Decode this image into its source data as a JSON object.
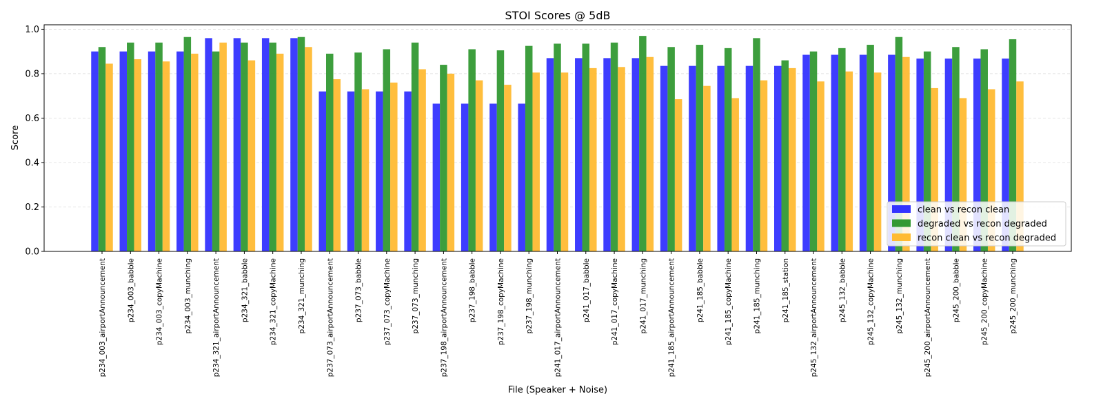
{
  "chart_data": {
    "type": "bar",
    "title": "STOI Scores @ 5dB",
    "xlabel": "File (Speaker + Noise)",
    "ylabel": "Score",
    "ylim": [
      0,
      1.02
    ],
    "yticks": [
      "0.0",
      "0.2",
      "0.4",
      "0.6",
      "0.8",
      "1.0"
    ],
    "grid": "y-dashed",
    "legend_position": "lower-right",
    "categories": [
      "p234_003_airportAnnouncement",
      "p234_003_babble",
      "p234_003_copyMachine",
      "p234_003_munching",
      "p234_321_airportAnnouncement",
      "p234_321_babble",
      "p234_321_copyMachine",
      "p234_321_munching",
      "p237_073_airportAnnouncement",
      "p237_073_babble",
      "p237_073_copyMachine",
      "p237_073_munching",
      "p237_198_airportAnnouncement",
      "p237_198_babble",
      "p237_198_copyMachine",
      "p237_198_munching",
      "p241_017_airportAnnouncement",
      "p241_017_babble",
      "p241_017_copyMachine",
      "p241_017_munching",
      "p241_185_airportAnnouncement",
      "p241_185_babble",
      "p241_185_copyMachine",
      "p241_185_munching",
      "p241_185_station",
      "p245_132_airportAnnouncement",
      "p245_132_babble",
      "p245_132_copyMachine",
      "p245_132_munching",
      "p245_200_airportAnnouncement",
      "p245_200_babble",
      "p245_200_copyMachine",
      "p245_200_munching"
    ],
    "series": [
      {
        "name": "clean vs recon clean",
        "color": "#3333ff",
        "values": [
          0.9,
          0.9,
          0.9,
          0.9,
          0.96,
          0.96,
          0.96,
          0.96,
          0.72,
          0.72,
          0.72,
          0.72,
          0.665,
          0.665,
          0.665,
          0.665,
          0.87,
          0.87,
          0.87,
          0.87,
          0.835,
          0.835,
          0.835,
          0.835,
          0.835,
          0.885,
          0.885,
          0.885,
          0.885,
          0.868,
          0.868,
          0.868,
          0.868
        ]
      },
      {
        "name": "degraded vs recon degraded",
        "color": "#339933",
        "values": [
          0.92,
          0.94,
          0.94,
          0.965,
          0.9,
          0.94,
          0.94,
          0.965,
          0.89,
          0.895,
          0.91,
          0.94,
          0.84,
          0.91,
          0.905,
          0.925,
          0.935,
          0.935,
          0.94,
          0.97,
          0.92,
          0.93,
          0.915,
          0.96,
          0.86,
          0.9,
          0.915,
          0.93,
          0.965,
          0.9,
          0.92,
          0.91,
          0.955
        ]
      },
      {
        "name": "recon clean vs recon degraded",
        "color": "#ffbb33",
        "values": [
          0.845,
          0.865,
          0.855,
          0.89,
          0.94,
          0.86,
          0.89,
          0.92,
          0.775,
          0.73,
          0.76,
          0.82,
          0.8,
          0.77,
          0.75,
          0.805,
          0.805,
          0.825,
          0.83,
          0.875,
          0.685,
          0.745,
          0.69,
          0.77,
          0.825,
          0.765,
          0.81,
          0.805,
          0.875,
          0.735,
          0.69,
          0.73,
          0.765
        ]
      }
    ]
  }
}
